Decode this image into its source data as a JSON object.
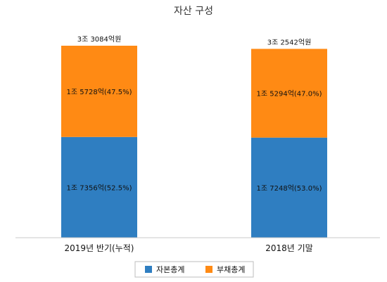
{
  "chart_data": {
    "type": "bar",
    "stacked": true,
    "title": "자산 구성",
    "categories": [
      "2019년 반기(누적)",
      "2018년 기말"
    ],
    "series": [
      {
        "name": "자본총계",
        "color": "#2f7ec1",
        "values": [
          17356,
          17248
        ],
        "labels": [
          "1조 7356억(52.5%)",
          "1조 7248억(53.0%)"
        ]
      },
      {
        "name": "부채총계",
        "color": "#ff8a14",
        "values": [
          15728,
          15294
        ],
        "labels": [
          "1조 5728억(47.5%)",
          "1조 5294억(47.0%)"
        ]
      }
    ],
    "totals": [
      33084,
      32542
    ],
    "total_labels": [
      "3조 3084억원",
      "3조 2542억원"
    ],
    "legend_position": "bottom",
    "grid": false
  }
}
